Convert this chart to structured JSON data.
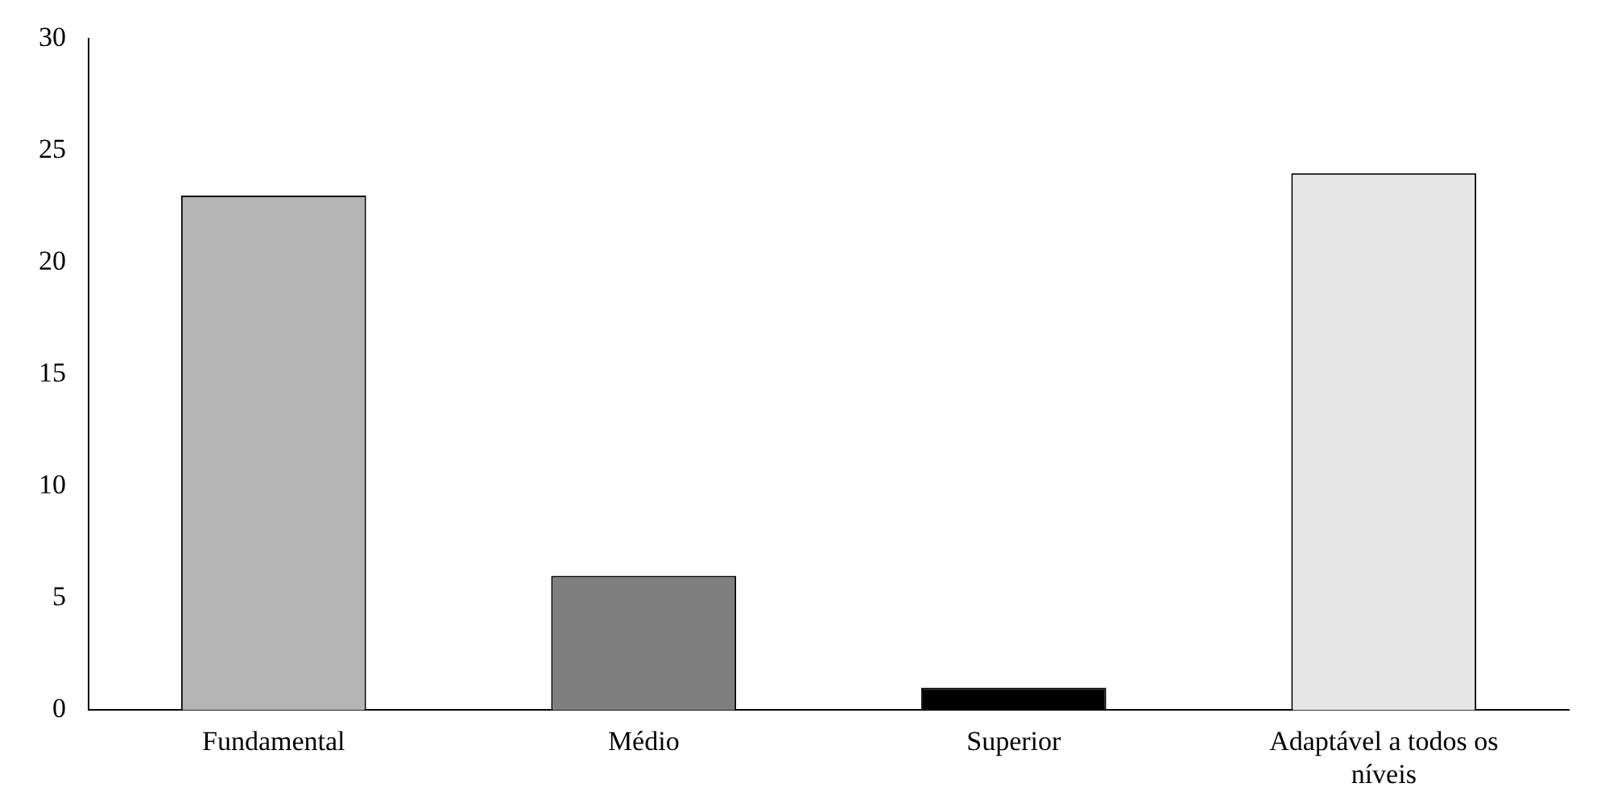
{
  "chart_data": {
    "type": "bar",
    "categories": [
      "Fundamental",
      "Médio",
      "Superior",
      "Adaptável a todos os níveis"
    ],
    "values": [
      23,
      6,
      1,
      24
    ],
    "colors": [
      "#b4b4b4",
      "#7f7f7f",
      "#000000",
      "#e6e6e6"
    ],
    "ylim": [
      0,
      30
    ],
    "yticks": [
      0,
      5,
      10,
      15,
      20,
      25,
      30
    ],
    "grid": false,
    "legend": false
  }
}
